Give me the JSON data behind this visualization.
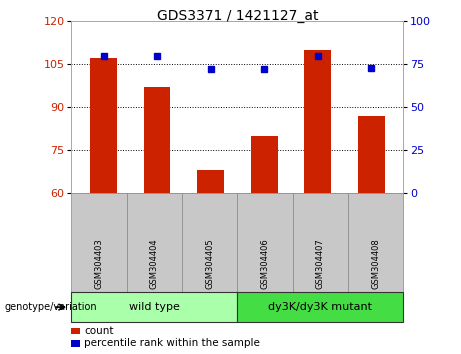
{
  "title": "GDS3371 / 1421127_at",
  "samples": [
    "GSM304403",
    "GSM304404",
    "GSM304405",
    "GSM304406",
    "GSM304407",
    "GSM304408"
  ],
  "counts": [
    107,
    97,
    68,
    80,
    110,
    87
  ],
  "percentiles": [
    80,
    80,
    72,
    72,
    80,
    73
  ],
  "ylim_left": [
    60,
    120
  ],
  "yticks_left": [
    60,
    75,
    90,
    105,
    120
  ],
  "ylim_right": [
    0,
    100
  ],
  "yticks_right": [
    0,
    25,
    50,
    75,
    100
  ],
  "bar_color": "#cc2200",
  "dot_color": "#0000cc",
  "groups": [
    {
      "label": "wild type",
      "n": 3,
      "color": "#aaffaa"
    },
    {
      "label": "dy3K/dy3K mutant",
      "n": 3,
      "color": "#44dd44"
    }
  ],
  "genotype_label": "genotype/variation",
  "legend_count_label": "count",
  "legend_percentile_label": "percentile rank within the sample",
  "background_color": "#ffffff",
  "plot_bg": "#ffffff",
  "tick_label_area_color": "#c8c8c8",
  "title_fontsize": 10,
  "axis_fontsize": 8,
  "sample_fontsize": 6,
  "group_fontsize": 8,
  "legend_fontsize": 7.5
}
